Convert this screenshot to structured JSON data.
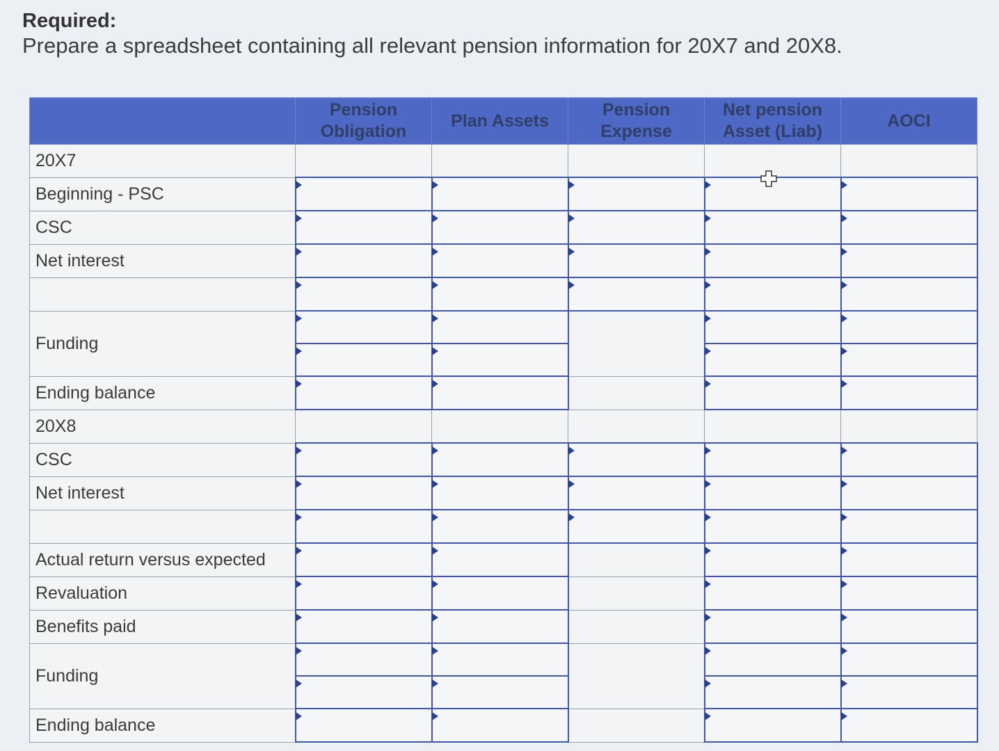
{
  "heading": "Required:",
  "instructions": "Prepare a spreadsheet containing all relevant pension information for 20X7 and 20X8.",
  "table": {
    "columns": [
      "",
      "Pension Obligation",
      "Plan Assets",
      "Pension Expense",
      "Net pension Asset (Liab)",
      "AOCI"
    ],
    "rows": [
      "20X7",
      "Beginning - PSC",
      "CSC",
      "Net interest",
      "",
      "Funding",
      "Ending balance",
      "20X8",
      "CSC",
      "Net interest",
      "",
      "Actual return versus expected",
      "Revaluation",
      "Benefits paid",
      "Funding",
      "Ending balance"
    ]
  },
  "icons": {
    "cursor": "move-cursor-icon"
  },
  "colors": {
    "header_bg": "#4e68c6",
    "input_border": "#3f55b3"
  }
}
